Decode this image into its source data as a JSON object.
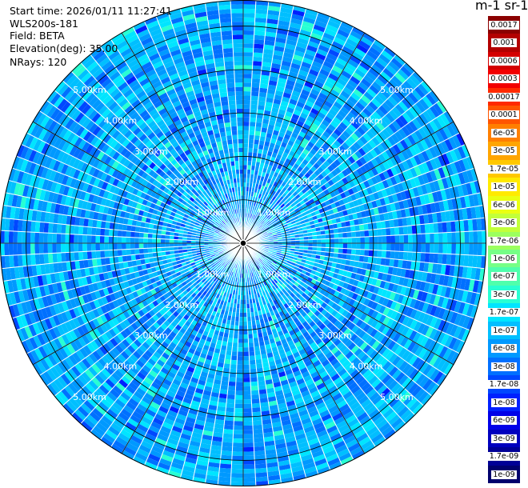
{
  "info": {
    "start_time": "Start time: 2026/01/11 11:27:41",
    "device": "WLS200s-181",
    "field": "Field: BETA",
    "elevation": "Elevation(deg): 35.00",
    "nrays": "NRays: 120"
  },
  "colorbar": {
    "title": "m-1 sr-1",
    "ticks": [
      "0.0017",
      "0.001",
      "0.0006",
      "0.0003",
      "0.00017",
      "0.0001",
      "6e-05",
      "3e-05",
      "1.7e-05",
      "1e-05",
      "6e-06",
      "3e-06",
      "1.7e-06",
      "1e-06",
      "6e-07",
      "3e-07",
      "1.7e-07",
      "1e-07",
      "6e-08",
      "3e-08",
      "1.7e-08",
      "1e-08",
      "6e-09",
      "3e-09",
      "1.7e-09",
      "1e-09"
    ],
    "colors": [
      "#8b0000",
      "#b30000",
      "#d40000",
      "#f20000",
      "#ff2a00",
      "#ff5500",
      "#ff7f00",
      "#ffa500",
      "#ffc800",
      "#ffea00",
      "#eaff12",
      "#c2ff3a",
      "#9cff5f",
      "#76ff86",
      "#4fffac",
      "#28ffd3",
      "#00e5ff",
      "#00bfff",
      "#0099ff",
      "#0070ff",
      "#0047ff",
      "#0020ff",
      "#0000e8",
      "#0000bf",
      "#000096",
      "#00006d"
    ]
  },
  "chart_data": {
    "type": "heatmap",
    "projection": "polar-ppi",
    "field": "BETA",
    "units": "m-1 sr-1",
    "n_rays": 120,
    "range_rings_km": [
      1,
      2,
      3,
      4,
      5
    ],
    "range_ring_labels": [
      "1.00km",
      "2.00km",
      "3.00km",
      "4.00km",
      "5.00km"
    ],
    "max_range_km": 5.6,
    "scale": "log",
    "value_range": [
      1e-09,
      0.0017
    ],
    "typical_value_range": [
      3e-08,
      1.7e-07
    ]
  }
}
